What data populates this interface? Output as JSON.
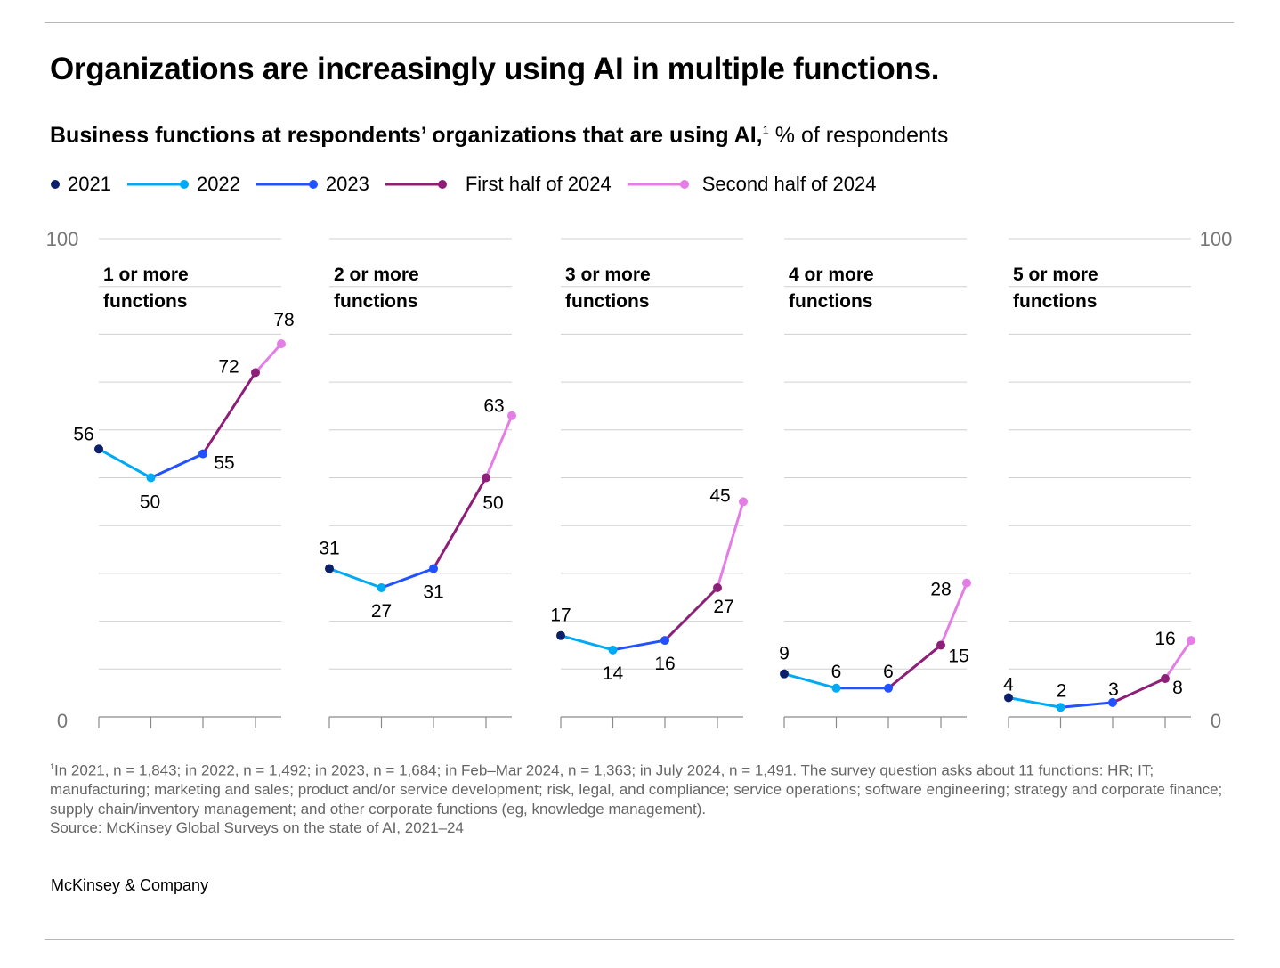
{
  "title": "Organizations are increasingly using AI in multiple functions.",
  "subtitle": {
    "bold": "Business functions at respondents’ organizations that are using AI,",
    "sup": "1",
    "unit": " % of respondents"
  },
  "legend": [
    {
      "label": "2021",
      "color": "#0b1f6b",
      "marker_only": true
    },
    {
      "label": "2022",
      "color": "#00a9f4"
    },
    {
      "label": "2023",
      "color": "#2251ff"
    },
    {
      "label": "First half of 2024",
      "color": "#8e1f79"
    },
    {
      "label": "Second half of 2024",
      "color": "#e47ee6"
    }
  ],
  "chart_data": {
    "type": "line",
    "ylim": [
      0,
      100
    ],
    "y_ticks_labeled": [
      "0",
      "100"
    ],
    "grid": true,
    "legend_placement": "top",
    "periods": [
      "2021",
      "2022",
      "2023",
      "First half of 2024",
      "Second half of 2024"
    ],
    "panels": [
      {
        "title": [
          "1 or more",
          "functions"
        ],
        "values": [
          56,
          50,
          55,
          72,
          78
        ]
      },
      {
        "title": [
          "2 or more",
          "functions"
        ],
        "values": [
          31,
          27,
          31,
          50,
          63
        ]
      },
      {
        "title": [
          "3 or more",
          "functions"
        ],
        "values": [
          17,
          14,
          16,
          27,
          45
        ]
      },
      {
        "title": [
          "4 or more",
          "functions"
        ],
        "values": [
          9,
          6,
          6,
          15,
          28
        ]
      },
      {
        "title": [
          "5 or more",
          "functions"
        ],
        "values": [
          4,
          2,
          3,
          8,
          16
        ]
      }
    ]
  },
  "footnote": {
    "sup": "1",
    "text": "In 2021, n = 1,843; in 2022, n = 1,492; in 2023, n = 1,684; in Feb–Mar 2024, n = 1,363; in July 2024, n = 1,491. The survey question asks about 11 functions: HR; IT; manufacturing; marketing and sales; product and/or service development; risk, legal, and compliance; service operations; software engineering; strategy and corporate finance; supply chain/inventory management; and other corporate functions (eg, knowledge management).",
    "source": "Source: McKinsey Global Surveys on the state of AI, 2021–24"
  },
  "brand": "McKinsey & Company"
}
